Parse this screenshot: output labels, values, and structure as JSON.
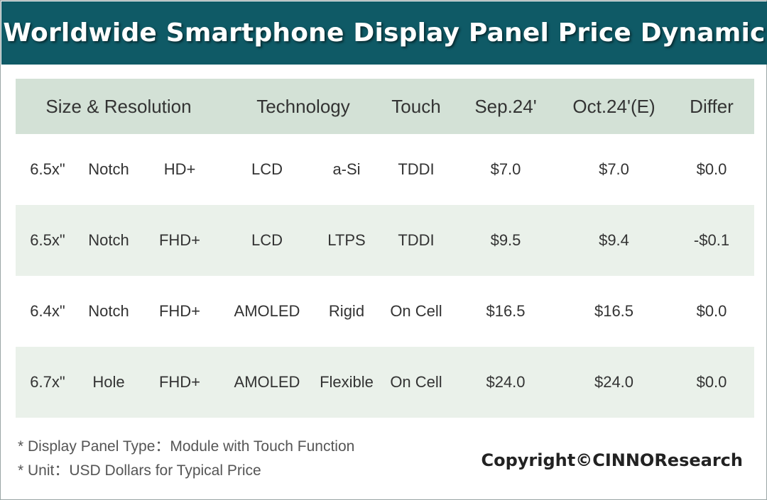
{
  "title": "Worldwide Smartphone Display Panel Price Dynamic",
  "colors": {
    "banner": "#0f5a66",
    "header_row": "#d3e1d6",
    "alt_row": "#eaf1ea"
  },
  "chart_data": {
    "type": "table",
    "columns": [
      "Size & Resolution",
      "Technology",
      "Touch",
      "Sep.24'",
      "Oct.24'(E)",
      "Differ"
    ],
    "rows": [
      {
        "size": "6.5x\"",
        "shape": "Notch",
        "resolution": "HD+",
        "display": "LCD",
        "backplane": "a-Si",
        "touch": "TDDI",
        "sep": "$7.0",
        "oct": "$7.0",
        "differ": "$0.0"
      },
      {
        "size": "6.5x\"",
        "shape": "Notch",
        "resolution": "FHD+",
        "display": "LCD",
        "backplane": "LTPS",
        "touch": "TDDI",
        "sep": "$9.5",
        "oct": "$9.4",
        "differ": "-$0.1"
      },
      {
        "size": "6.4x\"",
        "shape": "Notch",
        "resolution": "FHD+",
        "display": "AMOLED",
        "backplane": "Rigid",
        "touch": "On Cell",
        "sep": "$16.5",
        "oct": "$16.5",
        "differ": "$0.0"
      },
      {
        "size": "6.7x\"",
        "shape": "Hole",
        "resolution": "FHD+",
        "display": "AMOLED",
        "backplane": "Flexible",
        "touch": "On Cell",
        "sep": "$24.0",
        "oct": "$24.0",
        "differ": "$0.0"
      }
    ]
  },
  "notes": [
    "* Display Panel Type：Module with Touch Function",
    "* Unit：USD Dollars for Typical Price"
  ],
  "copyright": "Copyright©CINNOResearch"
}
